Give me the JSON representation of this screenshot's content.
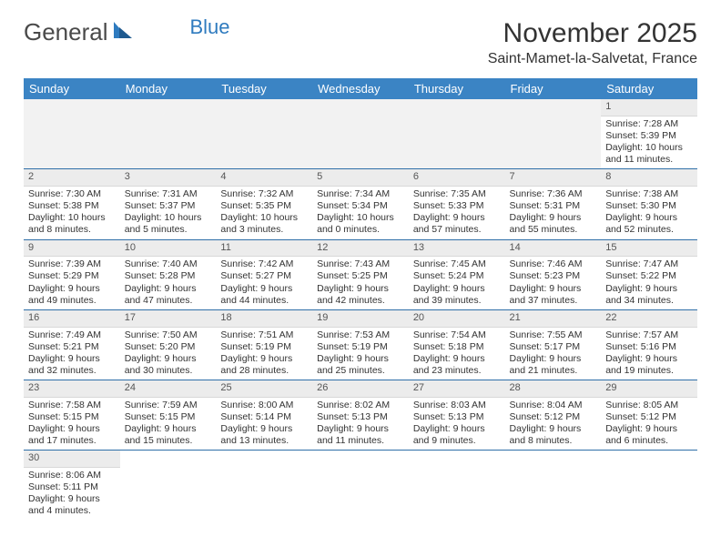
{
  "logo": {
    "text1": "General",
    "text2": "Blue"
  },
  "title": "November 2025",
  "subtitle": "Saint-Mamet-la-Salvetat, France",
  "colors": {
    "header_bg": "#3b84c4",
    "header_text": "#ffffff",
    "daynum_bg": "#ececec",
    "row_divider": "#2f6fa8",
    "logo_blue": "#2f7bbf",
    "text": "#333333",
    "empty_bg": "#f2f2f2"
  },
  "weekdays": [
    "Sunday",
    "Monday",
    "Tuesday",
    "Wednesday",
    "Thursday",
    "Friday",
    "Saturday"
  ],
  "cells": [
    [
      null,
      null,
      null,
      null,
      null,
      null,
      {
        "n": "1",
        "sunrise": "Sunrise: 7:28 AM",
        "sunset": "Sunset: 5:39 PM",
        "daylight": "Daylight: 10 hours and 11 minutes."
      }
    ],
    [
      {
        "n": "2",
        "sunrise": "Sunrise: 7:30 AM",
        "sunset": "Sunset: 5:38 PM",
        "daylight": "Daylight: 10 hours and 8 minutes."
      },
      {
        "n": "3",
        "sunrise": "Sunrise: 7:31 AM",
        "sunset": "Sunset: 5:37 PM",
        "daylight": "Daylight: 10 hours and 5 minutes."
      },
      {
        "n": "4",
        "sunrise": "Sunrise: 7:32 AM",
        "sunset": "Sunset: 5:35 PM",
        "daylight": "Daylight: 10 hours and 3 minutes."
      },
      {
        "n": "5",
        "sunrise": "Sunrise: 7:34 AM",
        "sunset": "Sunset: 5:34 PM",
        "daylight": "Daylight: 10 hours and 0 minutes."
      },
      {
        "n": "6",
        "sunrise": "Sunrise: 7:35 AM",
        "sunset": "Sunset: 5:33 PM",
        "daylight": "Daylight: 9 hours and 57 minutes."
      },
      {
        "n": "7",
        "sunrise": "Sunrise: 7:36 AM",
        "sunset": "Sunset: 5:31 PM",
        "daylight": "Daylight: 9 hours and 55 minutes."
      },
      {
        "n": "8",
        "sunrise": "Sunrise: 7:38 AM",
        "sunset": "Sunset: 5:30 PM",
        "daylight": "Daylight: 9 hours and 52 minutes."
      }
    ],
    [
      {
        "n": "9",
        "sunrise": "Sunrise: 7:39 AM",
        "sunset": "Sunset: 5:29 PM",
        "daylight": "Daylight: 9 hours and 49 minutes."
      },
      {
        "n": "10",
        "sunrise": "Sunrise: 7:40 AM",
        "sunset": "Sunset: 5:28 PM",
        "daylight": "Daylight: 9 hours and 47 minutes."
      },
      {
        "n": "11",
        "sunrise": "Sunrise: 7:42 AM",
        "sunset": "Sunset: 5:27 PM",
        "daylight": "Daylight: 9 hours and 44 minutes."
      },
      {
        "n": "12",
        "sunrise": "Sunrise: 7:43 AM",
        "sunset": "Sunset: 5:25 PM",
        "daylight": "Daylight: 9 hours and 42 minutes."
      },
      {
        "n": "13",
        "sunrise": "Sunrise: 7:45 AM",
        "sunset": "Sunset: 5:24 PM",
        "daylight": "Daylight: 9 hours and 39 minutes."
      },
      {
        "n": "14",
        "sunrise": "Sunrise: 7:46 AM",
        "sunset": "Sunset: 5:23 PM",
        "daylight": "Daylight: 9 hours and 37 minutes."
      },
      {
        "n": "15",
        "sunrise": "Sunrise: 7:47 AM",
        "sunset": "Sunset: 5:22 PM",
        "daylight": "Daylight: 9 hours and 34 minutes."
      }
    ],
    [
      {
        "n": "16",
        "sunrise": "Sunrise: 7:49 AM",
        "sunset": "Sunset: 5:21 PM",
        "daylight": "Daylight: 9 hours and 32 minutes."
      },
      {
        "n": "17",
        "sunrise": "Sunrise: 7:50 AM",
        "sunset": "Sunset: 5:20 PM",
        "daylight": "Daylight: 9 hours and 30 minutes."
      },
      {
        "n": "18",
        "sunrise": "Sunrise: 7:51 AM",
        "sunset": "Sunset: 5:19 PM",
        "daylight": "Daylight: 9 hours and 28 minutes."
      },
      {
        "n": "19",
        "sunrise": "Sunrise: 7:53 AM",
        "sunset": "Sunset: 5:19 PM",
        "daylight": "Daylight: 9 hours and 25 minutes."
      },
      {
        "n": "20",
        "sunrise": "Sunrise: 7:54 AM",
        "sunset": "Sunset: 5:18 PM",
        "daylight": "Daylight: 9 hours and 23 minutes."
      },
      {
        "n": "21",
        "sunrise": "Sunrise: 7:55 AM",
        "sunset": "Sunset: 5:17 PM",
        "daylight": "Daylight: 9 hours and 21 minutes."
      },
      {
        "n": "22",
        "sunrise": "Sunrise: 7:57 AM",
        "sunset": "Sunset: 5:16 PM",
        "daylight": "Daylight: 9 hours and 19 minutes."
      }
    ],
    [
      {
        "n": "23",
        "sunrise": "Sunrise: 7:58 AM",
        "sunset": "Sunset: 5:15 PM",
        "daylight": "Daylight: 9 hours and 17 minutes."
      },
      {
        "n": "24",
        "sunrise": "Sunrise: 7:59 AM",
        "sunset": "Sunset: 5:15 PM",
        "daylight": "Daylight: 9 hours and 15 minutes."
      },
      {
        "n": "25",
        "sunrise": "Sunrise: 8:00 AM",
        "sunset": "Sunset: 5:14 PM",
        "daylight": "Daylight: 9 hours and 13 minutes."
      },
      {
        "n": "26",
        "sunrise": "Sunrise: 8:02 AM",
        "sunset": "Sunset: 5:13 PM",
        "daylight": "Daylight: 9 hours and 11 minutes."
      },
      {
        "n": "27",
        "sunrise": "Sunrise: 8:03 AM",
        "sunset": "Sunset: 5:13 PM",
        "daylight": "Daylight: 9 hours and 9 minutes."
      },
      {
        "n": "28",
        "sunrise": "Sunrise: 8:04 AM",
        "sunset": "Sunset: 5:12 PM",
        "daylight": "Daylight: 9 hours and 8 minutes."
      },
      {
        "n": "29",
        "sunrise": "Sunrise: 8:05 AM",
        "sunset": "Sunset: 5:12 PM",
        "daylight": "Daylight: 9 hours and 6 minutes."
      }
    ],
    [
      {
        "n": "30",
        "sunrise": "Sunrise: 8:06 AM",
        "sunset": "Sunset: 5:11 PM",
        "daylight": "Daylight: 9 hours and 4 minutes."
      },
      null,
      null,
      null,
      null,
      null,
      null
    ]
  ]
}
